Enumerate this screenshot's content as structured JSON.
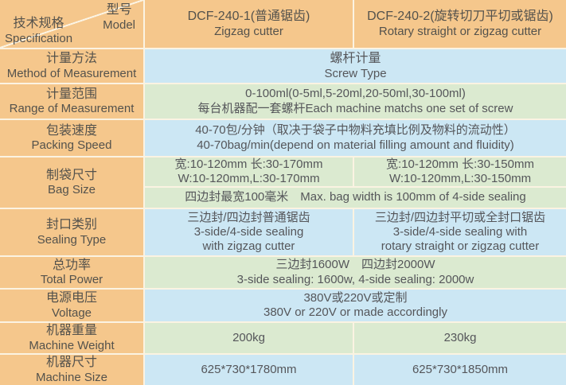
{
  "colors": {
    "header_orange": "#f5c78c",
    "row_blue": "#cce7f4",
    "row_green": "#dbead0",
    "border_cream": "#fbf3e2",
    "text": "#55565a"
  },
  "header": {
    "corner_top_zh": "型号",
    "corner_top_en": "Model",
    "corner_bottom_zh": "技术规格",
    "corner_bottom_en": "Specification",
    "model1_zh": "DCF-240-1(普通锯齿)",
    "model1_en": "Zigzag cutter",
    "model2_zh": "DCF-240-2(旋转切刀平切或锯齿)",
    "model2_en": "Rotary straight or zigzag cutter"
  },
  "rows": {
    "measurement_method": {
      "label_zh": "计量方法",
      "label_en": "Method of Measurement",
      "value_zh": "螺杆计量",
      "value_en": "Screw Type"
    },
    "measurement_range": {
      "label_zh": "计量范围",
      "label_en": "Range of Measurement",
      "value_line1": "0-100ml(0-5ml,5-20ml,20-50ml,30-100ml)",
      "value_line2": "每台机器配一套螺杆Each machine matchs one set of screw"
    },
    "packing_speed": {
      "label_zh": "包装速度",
      "label_en": "Packing Speed",
      "value_line1": "40-70包/分钟（取决于袋子中物料充填比例及物料的流动性）",
      "value_line2": "40-70bag/min(depend on material filling amount and fluidity)"
    },
    "bag_size": {
      "label_zh": "制袋尺寸",
      "label_en": "Bag Size",
      "col1_line1": "宽:10-120mm 长:30-170mm",
      "col1_line2": "W:10-120mm,L:30-170mm",
      "col2_line1": "宽:10-120mm 长:30-150mm",
      "col2_line2": "W:10-120mm,L:30-150mm",
      "note": "四边封最宽100毫米　Max. bag width is 100mm of 4-side sealing"
    },
    "sealing_type": {
      "label_zh": "封口类别",
      "label_en": "Sealing Type",
      "col1_line1": "三边封/四边封普通锯齿",
      "col1_line2": "3-side/4-side sealing",
      "col1_line3": "with zigzag cutter",
      "col2_line1": "三边封/四边封平切或全封口锯齿",
      "col2_line2": "3-side/4-side sealing with",
      "col2_line3": "rotary straight or zigzag cutter"
    },
    "total_power": {
      "label_zh": "总功率",
      "label_en": "Total Power",
      "value_line1": "三边封1600W　四边封2000W",
      "value_line2": "3-side sealing: 1600w,  4-side sealing: 2000w"
    },
    "voltage": {
      "label_zh": "电源电压",
      "label_en": "Voltage",
      "value_line1": "380V或220V或定制",
      "value_line2": "380V or 220V or made accordingly"
    },
    "machine_weight": {
      "label_zh": "机器重量",
      "label_en": "Machine Weight",
      "col1": "200kg",
      "col2": "230kg"
    },
    "machine_size": {
      "label_zh": "机器尺寸",
      "label_en": "Machine Size",
      "col1": "625*730*1780mm",
      "col2": "625*730*1850mm"
    }
  }
}
